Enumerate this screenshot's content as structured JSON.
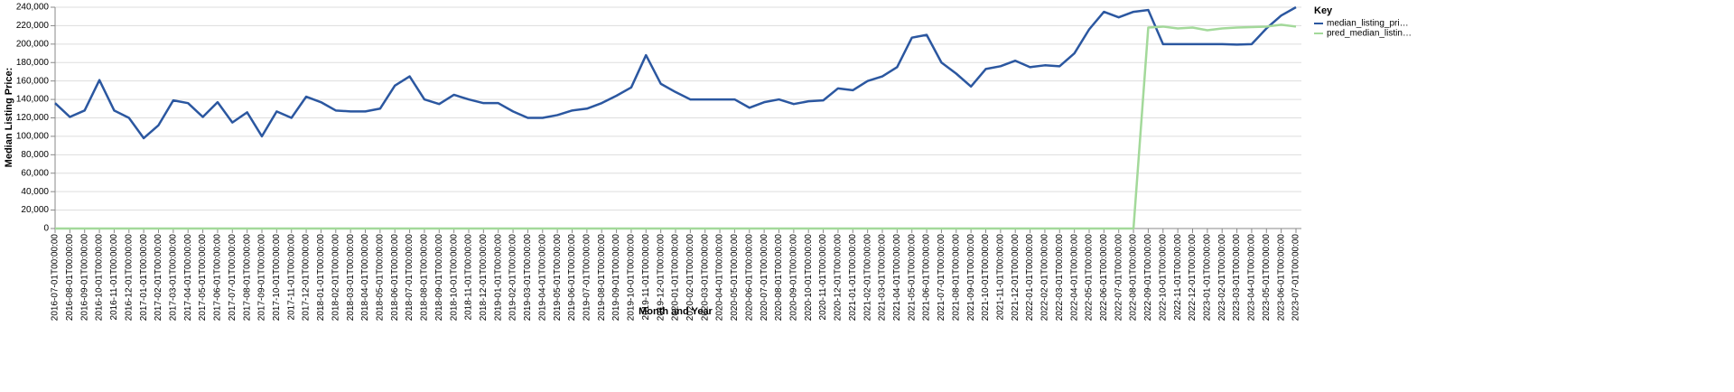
{
  "chart_data": {
    "type": "line",
    "xlabel": "Month and Year",
    "ylabel": "Median Listing Price:",
    "legend_title": "Key",
    "legend": "top-right",
    "grid": true,
    "categories": [
      "2016-07-01T00:00:00",
      "2016-08-01T00:00:00",
      "2016-09-01T00:00:00",
      "2016-10-01T00:00:00",
      "2016-11-01T00:00:00",
      "2016-12-01T00:00:00",
      "2017-01-01T00:00:00",
      "2017-02-01T00:00:00",
      "2017-03-01T00:00:00",
      "2017-04-01T00:00:00",
      "2017-05-01T00:00:00",
      "2017-06-01T00:00:00",
      "2017-07-01T00:00:00",
      "2017-08-01T00:00:00",
      "2017-09-01T00:00:00",
      "2017-10-01T00:00:00",
      "2017-11-01T00:00:00",
      "2017-12-01T00:00:00",
      "2018-01-01T00:00:00",
      "2018-02-01T00:00:00",
      "2018-03-01T00:00:00",
      "2018-04-01T00:00:00",
      "2018-05-01T00:00:00",
      "2018-06-01T00:00:00",
      "2018-07-01T00:00:00",
      "2018-08-01T00:00:00",
      "2018-09-01T00:00:00",
      "2018-10-01T00:00:00",
      "2018-11-01T00:00:00",
      "2018-12-01T00:00:00",
      "2019-01-01T00:00:00",
      "2019-02-01T00:00:00",
      "2019-03-01T00:00:00",
      "2019-04-01T00:00:00",
      "2019-05-01T00:00:00",
      "2019-06-01T00:00:00",
      "2019-07-01T00:00:00",
      "2019-08-01T00:00:00",
      "2019-09-01T00:00:00",
      "2019-10-01T00:00:00",
      "2019-11-01T00:00:00",
      "2019-12-01T00:00:00",
      "2020-01-01T00:00:00",
      "2020-02-01T00:00:00",
      "2020-03-01T00:00:00",
      "2020-04-01T00:00:00",
      "2020-05-01T00:00:00",
      "2020-06-01T00:00:00",
      "2020-07-01T00:00:00",
      "2020-08-01T00:00:00",
      "2020-09-01T00:00:00",
      "2020-10-01T00:00:00",
      "2020-11-01T00:00:00",
      "2020-12-01T00:00:00",
      "2021-01-01T00:00:00",
      "2021-02-01T00:00:00",
      "2021-03-01T00:00:00",
      "2021-04-01T00:00:00",
      "2021-05-01T00:00:00",
      "2021-06-01T00:00:00",
      "2021-07-01T00:00:00",
      "2021-08-01T00:00:00",
      "2021-09-01T00:00:00",
      "2021-10-01T00:00:00",
      "2021-11-01T00:00:00",
      "2021-12-01T00:00:00",
      "2022-01-01T00:00:00",
      "2022-02-01T00:00:00",
      "2022-03-01T00:00:00",
      "2022-04-01T00:00:00",
      "2022-05-01T00:00:00",
      "2022-06-01T00:00:00",
      "2022-07-01T00:00:00",
      "2022-08-01T00:00:00",
      "2022-09-01T00:00:00",
      "2022-10-01T00:00:00",
      "2022-11-01T00:00:00",
      "2022-12-01T00:00:00",
      "2023-01-01T00:00:00",
      "2023-02-01T00:00:00",
      "2023-03-01T00:00:00",
      "2023-04-01T00:00:00",
      "2023-05-01T00:00:00",
      "2023-06-01T00:00:00",
      "2023-07-01T00:00:00"
    ],
    "series": [
      {
        "name": "median_listing_pri…",
        "color": "#2b57a0",
        "values": [
          136000,
          121000,
          128000,
          161000,
          128000,
          120000,
          98000,
          112000,
          139000,
          136000,
          121000,
          137000,
          115000,
          126000,
          100000,
          127000,
          120000,
          143000,
          137000,
          128000,
          127000,
          127000,
          130000,
          155000,
          165000,
          140000,
          135000,
          145000,
          140000,
          136000,
          136000,
          127000,
          120000,
          120000,
          123000,
          128000,
          130000,
          136000,
          144000,
          153000,
          188000,
          157000,
          148000,
          140000,
          140000,
          140000,
          140000,
          131000,
          137000,
          140000,
          135000,
          138000,
          139000,
          152000,
          150000,
          160000,
          165000,
          175000,
          207000,
          210000,
          180000,
          168000,
          154000,
          173000,
          176000,
          182000,
          175000,
          177000,
          176000,
          190000,
          216000,
          235000,
          229000,
          235000,
          237000,
          200000,
          200000,
          200000,
          200000,
          200000,
          199500,
          200000,
          217000,
          231000,
          240000
        ]
      },
      {
        "name": "pred_median_listin…",
        "color": "#a3d99a",
        "values": [
          0,
          0,
          0,
          0,
          0,
          0,
          0,
          0,
          0,
          0,
          0,
          0,
          0,
          0,
          0,
          0,
          0,
          0,
          0,
          0,
          0,
          0,
          0,
          0,
          0,
          0,
          0,
          0,
          0,
          0,
          0,
          0,
          0,
          0,
          0,
          0,
          0,
          0,
          0,
          0,
          0,
          0,
          0,
          0,
          0,
          0,
          0,
          0,
          0,
          0,
          0,
          0,
          0,
          0,
          0,
          0,
          0,
          0,
          0,
          0,
          0,
          0,
          0,
          0,
          0,
          0,
          0,
          0,
          0,
          0,
          0,
          0,
          0,
          0,
          218000,
          219000,
          217000,
          218000,
          215000,
          217000,
          218000,
          218500,
          219000,
          221000,
          219000
        ]
      }
    ],
    "ylim": [
      0,
      240000
    ],
    "yticks": [
      0,
      {
        "value": 20000,
        "label": "20,000"
      },
      {
        "value": 40000,
        "label": "40,000"
      },
      {
        "value": 60000,
        "label": "60,000"
      },
      {
        "value": 80000,
        "label": "80,000"
      },
      {
        "value": 100000,
        "label": "100,000"
      },
      {
        "value": 120000,
        "label": "120,000"
      },
      {
        "value": 140000,
        "label": "140,000"
      },
      {
        "value": 160000,
        "label": "160,000"
      },
      {
        "value": 180000,
        "label": "180,000"
      },
      {
        "value": 200000,
        "label": "200,000"
      },
      {
        "value": 220000,
        "label": "220,000"
      },
      {
        "value": 240000,
        "label": "240,000"
      }
    ]
  }
}
